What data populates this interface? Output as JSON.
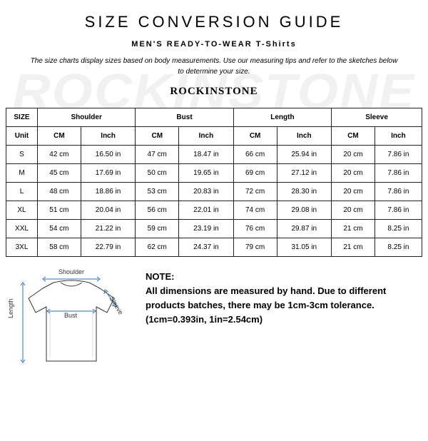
{
  "header": {
    "title": "SIZE CONVERSION GUIDE",
    "subtitle_prefix": "MEN'S READY-TO-WEAR",
    "subtitle_item": "T-Shirts",
    "description": "The size charts display sizes based on body measurements. Use our measuring tips and refer to the sketches below to determine your size.",
    "brand": "ROCKINSTONE",
    "watermark": "ROCKINSTONE"
  },
  "table": {
    "columns": [
      "SIZE",
      "Shoulder",
      "Bust",
      "Length",
      "Sleeve"
    ],
    "units": [
      "Unit",
      "CM",
      "Inch",
      "CM",
      "Inch",
      "CM",
      "Inch",
      "CM",
      "Inch"
    ],
    "rows": [
      {
        "size": "S",
        "shoulder_cm": "42 cm",
        "shoulder_in": "16.50 in",
        "bust_cm": "47 cm",
        "bust_in": "18.47 in",
        "length_cm": "66 cm",
        "length_in": "25.94 in",
        "sleeve_cm": "20 cm",
        "sleeve_in": "7.86 in"
      },
      {
        "size": "M",
        "shoulder_cm": "45 cm",
        "shoulder_in": "17.69 in",
        "bust_cm": "50 cm",
        "bust_in": "19.65 in",
        "length_cm": "69 cm",
        "length_in": "27.12 in",
        "sleeve_cm": "20 cm",
        "sleeve_in": "7.86 in"
      },
      {
        "size": "L",
        "shoulder_cm": "48 cm",
        "shoulder_in": "18.86 in",
        "bust_cm": "53 cm",
        "bust_in": "20.83 in",
        "length_cm": "72 cm",
        "length_in": "28.30 in",
        "sleeve_cm": "20 cm",
        "sleeve_in": "7.86 in"
      },
      {
        "size": "XL",
        "shoulder_cm": "51 cm",
        "shoulder_in": "20.04 in",
        "bust_cm": "56 cm",
        "bust_in": "22.01 in",
        "length_cm": "74 cm",
        "length_in": "29.08 in",
        "sleeve_cm": "20 cm",
        "sleeve_in": "7.86 in"
      },
      {
        "size": "XXL",
        "shoulder_cm": "54 cm",
        "shoulder_in": "21.22 in",
        "bust_cm": "59 cm",
        "bust_in": "23.19 in",
        "length_cm": "76 cm",
        "length_in": "29.87 in",
        "sleeve_cm": "21 cm",
        "sleeve_in": "8.25 in"
      },
      {
        "size": "3XL",
        "shoulder_cm": "58 cm",
        "shoulder_in": "22.79 in",
        "bust_cm": "62 cm",
        "bust_in": "24.37 in",
        "length_cm": "79 cm",
        "length_in": "31.05 in",
        "sleeve_cm": "21 cm",
        "sleeve_in": "8.25 in"
      }
    ]
  },
  "diagram": {
    "labels": {
      "shoulder": "Shoulder",
      "bust": "Bust",
      "length": "Length",
      "sleeve": "Sleeve"
    },
    "colors": {
      "shirt_fill": "#ffffff",
      "shirt_stroke": "#333333",
      "arrow": "#2a6db8",
      "bg": "#ffffff"
    }
  },
  "note": {
    "label": "NOTE:",
    "body": "All dimensions are measured by hand. Due to different products batches, there may be 1cm-3cm tolerance. (1cm=0.393in, 1in=2.54cm)"
  }
}
